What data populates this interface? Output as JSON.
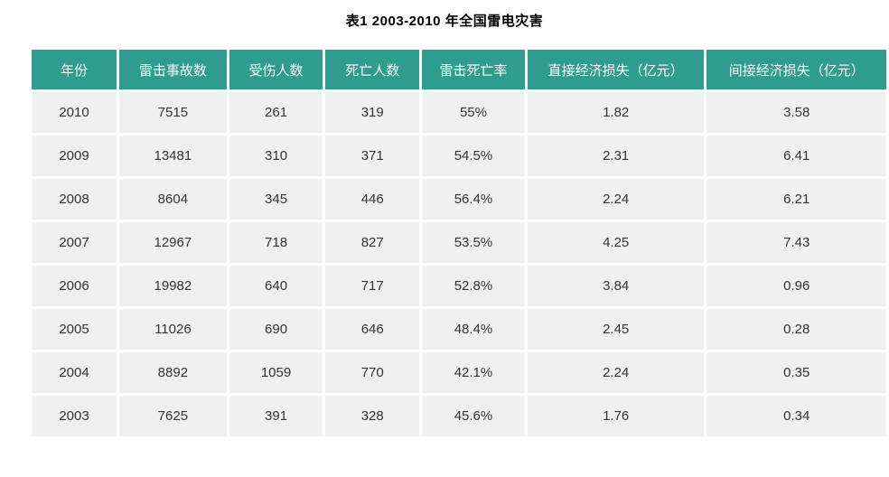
{
  "title": "表1 2003-2010 年全国雷电灾害",
  "chart_data": {
    "type": "table",
    "title": "表1 2003-2010 年全国雷电灾害",
    "columns": [
      "年份",
      "雷击事故数",
      "受伤人数",
      "死亡人数",
      "雷击死亡率",
      "直接经济损失（亿元）",
      "间接经济损失（亿元）"
    ],
    "rows": [
      [
        "2010",
        "7515",
        "261",
        "319",
        "55%",
        "1.82",
        "3.58"
      ],
      [
        "2009",
        "13481",
        "310",
        "371",
        "54.5%",
        "2.31",
        "6.41"
      ],
      [
        "2008",
        "8604",
        "345",
        "446",
        "56.4%",
        "2.24",
        "6.21"
      ],
      [
        "2007",
        "12967",
        "718",
        "827",
        "53.5%",
        "4.25",
        "7.43"
      ],
      [
        "2006",
        "19982",
        "640",
        "717",
        "52.8%",
        "3.84",
        "0.96"
      ],
      [
        "2005",
        "11026",
        "690",
        "646",
        "48.4%",
        "2.45",
        "0.28"
      ],
      [
        "2004",
        "8892",
        "1059",
        "770",
        "42.1%",
        "2.24",
        "0.35"
      ],
      [
        "2003",
        "7625",
        "391",
        "328",
        "45.6%",
        "1.76",
        "0.34"
      ]
    ],
    "years": [
      2010,
      2009,
      2008,
      2007,
      2006,
      2005,
      2004,
      2003
    ],
    "lightning_accidents": [
      7515,
      13481,
      8604,
      12967,
      19982,
      11026,
      8892,
      7625
    ],
    "injuries": [
      261,
      310,
      345,
      718,
      640,
      690,
      1059,
      391
    ],
    "deaths": [
      319,
      371,
      446,
      827,
      717,
      646,
      770,
      328
    ],
    "mortality_rate": [
      "55%",
      "54.5%",
      "56.4%",
      "53.5%",
      "52.8%",
      "48.4%",
      "42.1%",
      "45.6%"
    ],
    "direct_economic_loss_100m_yuan": [
      1.82,
      2.31,
      2.24,
      4.25,
      3.84,
      2.45,
      2.24,
      1.76
    ],
    "indirect_economic_loss_100m_yuan": [
      3.58,
      6.41,
      6.21,
      7.43,
      0.96,
      0.28,
      0.35,
      0.34
    ]
  },
  "colors": {
    "header_bg": "#2E9D90",
    "header_text": "#FFFFFF",
    "row_bg": "#F0F0F0",
    "body_text": "#333333",
    "page_bg": "#FFFFFF"
  }
}
